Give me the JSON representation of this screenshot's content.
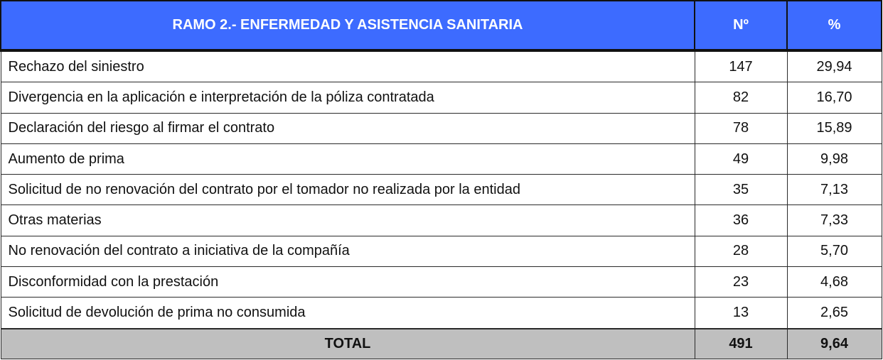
{
  "header": {
    "title": "RAMO 2.- ENFERMEDAD Y ASISTENCIA SANITARIA",
    "col_n": "Nº",
    "col_pct": "%"
  },
  "rows": [
    {
      "label": "Rechazo del siniestro",
      "n": "147",
      "pct": "29,94"
    },
    {
      "label": "Divergencia en la aplicación e interpretación de la póliza contratada",
      "n": "82",
      "pct": "16,70"
    },
    {
      "label": "Declaración del riesgo al firmar el contrato",
      "n": "78",
      "pct": "15,89"
    },
    {
      "label": "Aumento de prima",
      "n": "49",
      "pct": "9,98"
    },
    {
      "label": "Solicitud de no renovación del contrato por el tomador no realizada por la entidad",
      "n": "35",
      "pct": "7,13"
    },
    {
      "label": "Otras materias",
      "n": "36",
      "pct": "7,33"
    },
    {
      "label": "No renovación del contrato a iniciativa de la compañía",
      "n": "28",
      "pct": "5,70"
    },
    {
      "label": "Disconformidad con la prestación",
      "n": "23",
      "pct": "4,68"
    },
    {
      "label": "Solicitud de devolución de prima no consumida",
      "n": "13",
      "pct": "2,65"
    }
  ],
  "total": {
    "label": "TOTAL",
    "n": "491",
    "pct": "9,64"
  },
  "colors": {
    "header_bg": "#3d6bff",
    "header_text": "#ffffff",
    "total_bg": "#bfbfbf"
  }
}
